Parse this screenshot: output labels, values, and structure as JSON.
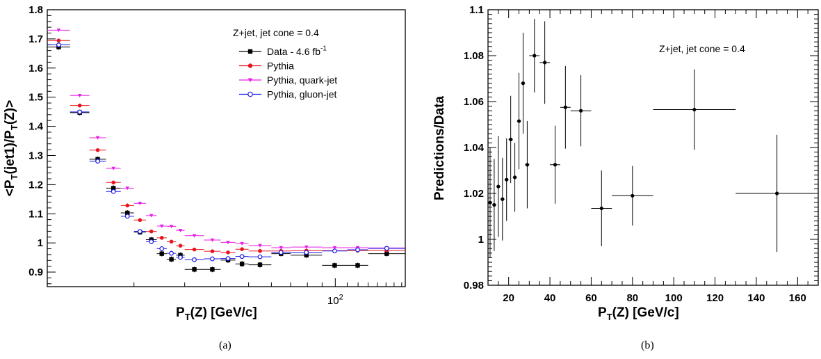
{
  "captions": [
    "(a)",
    "(b)"
  ],
  "chart_data": [
    {
      "type": "scatter",
      "title": "",
      "xlabel": "P_T(Z) [GeV/c]",
      "ylabel": "<P_T(jet1)/P_T(Z)>",
      "xscale": "log",
      "xlim": [
        10,
        175
      ],
      "ylim": [
        0.85,
        1.8
      ],
      "x_tick_label": "10^2",
      "yticks": [
        "0.9",
        "1",
        "1.1",
        "1.2",
        "1.3",
        "1.4",
        "1.5",
        "1.6",
        "1.7",
        "1.8"
      ],
      "legend": {
        "header": "Z+jet, jet cone = 0.4",
        "placement": "top-right",
        "entries": [
          "Data - 4.6 fb^-1",
          "Pythia",
          "Pythia, quark-jet",
          "Pythia, gluon-jet"
        ]
      },
      "x_bins": [
        [
          10,
          12
        ],
        [
          12,
          14
        ],
        [
          14,
          16
        ],
        [
          16,
          18
        ],
        [
          18,
          20
        ],
        [
          20,
          22
        ],
        [
          22,
          24
        ],
        [
          24,
          26
        ],
        [
          26,
          28
        ],
        [
          28,
          30
        ],
        [
          30,
          35
        ],
        [
          35,
          40
        ],
        [
          40,
          45
        ],
        [
          45,
          50
        ],
        [
          50,
          60
        ],
        [
          60,
          70
        ],
        [
          70,
          90
        ],
        [
          90,
          110
        ],
        [
          110,
          130
        ],
        [
          130,
          175
        ]
      ],
      "series": [
        {
          "name": "Data - 4.6 fb^-1",
          "color": "#000000",
          "marker": "square",
          "values": [
            1.672,
            1.447,
            1.287,
            1.188,
            1.103,
            1.037,
            1.011,
            0.963,
            0.944,
            0.958,
            0.909,
            0.909,
            0.941,
            0.928,
            0.925,
            0.963,
            0.958,
            0.923,
            0.923,
            0.963
          ]
        },
        {
          "name": "Pythia",
          "color": "#e8141e",
          "marker": "circle",
          "values": [
            1.698,
            1.475,
            1.322,
            1.211,
            1.132,
            1.082,
            1.043,
            1.021,
            1.008,
            0.994,
            0.981,
            0.975,
            0.971,
            0.982,
            0.976,
            0.976,
            0.977,
            0.977,
            0.977,
            0.978
          ]
        },
        {
          "name": "Pythia, quark-jet",
          "color": "#e81ee6",
          "marker": "triangle-down",
          "values": [
            1.731,
            1.507,
            1.362,
            1.257,
            1.189,
            1.137,
            1.095,
            1.059,
            1.058,
            1.044,
            1.026,
            1.011,
            1.003,
            0.999,
            0.992,
            0.985,
            0.987,
            0.985,
            0.985,
            0.984
          ]
        },
        {
          "name": "Pythia, gluon-jet",
          "color": "#1a1ae6",
          "marker": "open-circle",
          "values": [
            1.677,
            1.447,
            1.278,
            1.174,
            1.089,
            1.037,
            1.002,
            0.978,
            0.962,
            0.948,
            0.94,
            0.943,
            0.944,
            0.951,
            0.95,
            0.965,
            0.965,
            0.97,
            0.974,
            0.979
          ]
        }
      ]
    },
    {
      "type": "scatter",
      "title": "",
      "xlabel": "P_T(Z) [GeV/c]",
      "ylabel": "Predictions/Data",
      "xlim": [
        10,
        170
      ],
      "ylim": [
        0.98,
        1.1
      ],
      "xticks": [
        "20",
        "40",
        "60",
        "80",
        "100",
        "120",
        "140",
        "160"
      ],
      "yticks": [
        "0.98",
        "1",
        "1.02",
        "1.04",
        "1.06",
        "1.08",
        "1.1"
      ],
      "annotation": "Z+jet, jet cone = 0.4",
      "grid": false,
      "points": [
        {
          "x": 11,
          "xerr": 1,
          "y": 1.016,
          "yerr": 0.024
        },
        {
          "x": 13,
          "xerr": 1,
          "y": 1.015,
          "yerr": 0.02
        },
        {
          "x": 15,
          "xerr": 1,
          "y": 1.023,
          "yerr": 0.022
        },
        {
          "x": 17,
          "xerr": 1,
          "y": 1.0175,
          "yerr": 0.018
        },
        {
          "x": 19,
          "xerr": 1,
          "y": 1.026,
          "yerr": 0.018
        },
        {
          "x": 21,
          "xerr": 1,
          "y": 1.0435,
          "yerr": 0.019
        },
        {
          "x": 23,
          "xerr": 1,
          "y": 1.027,
          "yerr": 0.015
        },
        {
          "x": 25,
          "xerr": 1,
          "y": 1.0515,
          "yerr": 0.021
        },
        {
          "x": 27,
          "xerr": 1,
          "y": 1.068,
          "yerr": 0.022
        },
        {
          "x": 29,
          "xerr": 1,
          "y": 1.0325,
          "yerr": 0.019
        },
        {
          "x": 32.5,
          "xerr": 2.5,
          "y": 1.08,
          "yerr": 0.016
        },
        {
          "x": 37.5,
          "xerr": 2.5,
          "y": 1.077,
          "yerr": 0.018
        },
        {
          "x": 42.5,
          "xerr": 2.5,
          "y": 1.0325,
          "yerr": 0.017
        },
        {
          "x": 47.5,
          "xerr": 2.5,
          "y": 1.0575,
          "yerr": 0.018
        },
        {
          "x": 55,
          "xerr": 5,
          "y": 1.056,
          "yerr": 0.0155
        },
        {
          "x": 65,
          "xerr": 5,
          "y": 1.0135,
          "yerr": 0.0165
        },
        {
          "x": 80,
          "xerr": 10,
          "y": 1.019,
          "yerr": 0.013
        },
        {
          "x": 110,
          "xerr": 20,
          "y": 1.0565,
          "yerr": 0.0175
        },
        {
          "x": 150,
          "xerr": 20,
          "y": 1.02,
          "yerr": 0.0255
        }
      ]
    }
  ]
}
